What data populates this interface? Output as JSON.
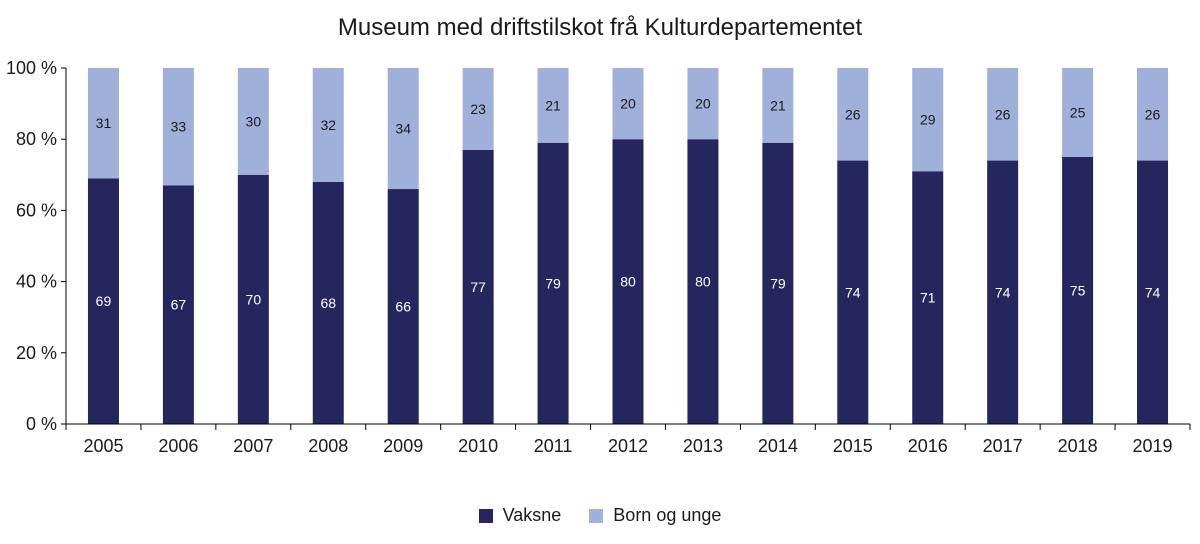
{
  "chart_data": {
    "type": "bar",
    "stacked": true,
    "title": "Museum med driftstilskot frå Kulturdepartementet",
    "xlabel": "",
    "ylabel": "",
    "ylim": [
      0,
      100
    ],
    "yticks": [
      0,
      20,
      40,
      60,
      80,
      100
    ],
    "ytick_labels": [
      "0 %",
      "20 %",
      "40 %",
      "60 %",
      "80 %",
      "100 %"
    ],
    "grid": false,
    "legend_position": "bottom",
    "categories": [
      "2005",
      "2006",
      "2007",
      "2008",
      "2009",
      "2010",
      "2011",
      "2012",
      "2013",
      "2014",
      "2015",
      "2016",
      "2017",
      "2018",
      "2019"
    ],
    "series": [
      {
        "name": "Vaksne",
        "color": "#25265e",
        "label_color": "#ffffff",
        "values": [
          69,
          67,
          70,
          68,
          66,
          77,
          79,
          80,
          80,
          79,
          74,
          71,
          74,
          75,
          74
        ]
      },
      {
        "name": "Born og unge",
        "color": "#9fb0db",
        "label_color": "#1a1a1a",
        "values": [
          31,
          33,
          30,
          32,
          34,
          23,
          21,
          20,
          20,
          21,
          26,
          29,
          26,
          25,
          26
        ]
      }
    ]
  }
}
